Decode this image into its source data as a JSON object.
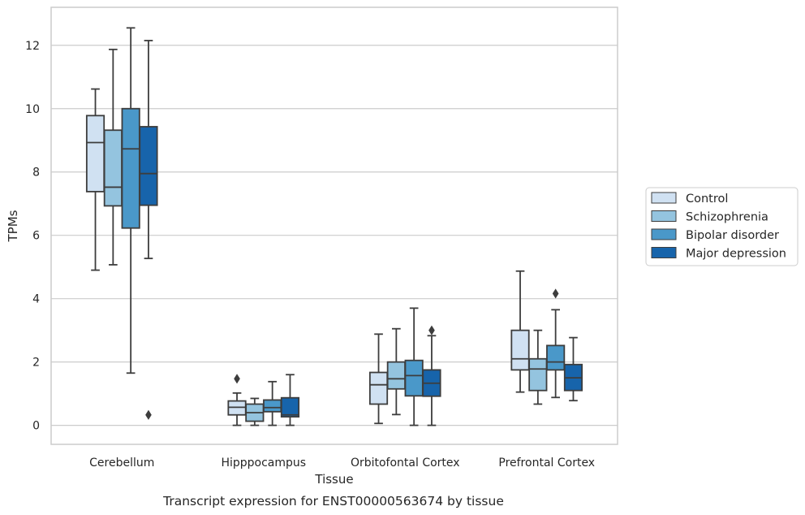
{
  "chart_data": {
    "type": "boxplot",
    "title": "",
    "caption": "Transcript expression for ENST00000563674 by tissue",
    "xlabel": "Tissue",
    "ylabel": "TPMs",
    "ylim": [
      -0.6,
      13.2
    ],
    "yticks": [
      0,
      2,
      4,
      6,
      8,
      10,
      12
    ],
    "grid": "horizontal",
    "legend_position": "right",
    "categories": [
      "Cerebellum",
      "Hipppocampus",
      "Orbitofontal Cortex",
      "Prefrontal Cortex"
    ],
    "series": [
      {
        "name": "Control",
        "color": "#d0e1f2",
        "boxes": [
          {
            "whislo": 4.9,
            "q1": 7.38,
            "med": 8.93,
            "q3": 9.78,
            "whishi": 10.62,
            "fliers": []
          },
          {
            "whislo": 0.0,
            "q1": 0.33,
            "med": 0.57,
            "q3": 0.77,
            "whishi": 1.02,
            "fliers": [
              1.47
            ]
          },
          {
            "whislo": 0.06,
            "q1": 0.67,
            "med": 1.28,
            "q3": 1.67,
            "whishi": 2.88,
            "fliers": []
          },
          {
            "whislo": 1.05,
            "q1": 1.75,
            "med": 2.1,
            "q3": 3.0,
            "whishi": 4.87,
            "fliers": []
          }
        ]
      },
      {
        "name": "Schizophrenia",
        "color": "#94c4df",
        "boxes": [
          {
            "whislo": 5.07,
            "q1": 6.93,
            "med": 7.52,
            "q3": 9.32,
            "whishi": 11.87,
            "fliers": []
          },
          {
            "whislo": 0.0,
            "q1": 0.13,
            "med": 0.4,
            "q3": 0.67,
            "whishi": 0.85,
            "fliers": []
          },
          {
            "whislo": 0.34,
            "q1": 1.15,
            "med": 1.47,
            "q3": 2.0,
            "whishi": 3.05,
            "fliers": []
          },
          {
            "whislo": 0.67,
            "q1": 1.1,
            "med": 1.78,
            "q3": 2.1,
            "whishi": 3.0,
            "fliers": []
          }
        ]
      },
      {
        "name": "Bipolar disorder",
        "color": "#4a98c9",
        "boxes": [
          {
            "whislo": 1.65,
            "q1": 6.23,
            "med": 8.73,
            "q3": 10.0,
            "whishi": 12.55,
            "fliers": []
          },
          {
            "whislo": 0.0,
            "q1": 0.43,
            "med": 0.56,
            "q3": 0.8,
            "whishi": 1.38,
            "fliers": []
          },
          {
            "whislo": 0.0,
            "q1": 0.93,
            "med": 1.57,
            "q3": 2.05,
            "whishi": 3.7,
            "fliers": []
          },
          {
            "whislo": 0.88,
            "q1": 1.75,
            "med": 2.0,
            "q3": 2.52,
            "whishi": 3.65,
            "fliers": [
              4.16
            ]
          }
        ]
      },
      {
        "name": "Major depression",
        "color": "#1764ab",
        "boxes": [
          {
            "whislo": 5.27,
            "q1": 6.95,
            "med": 7.95,
            "q3": 9.43,
            "whishi": 12.15,
            "fliers": [
              0.33
            ]
          },
          {
            "whislo": 0.0,
            "q1": 0.27,
            "med": 0.33,
            "q3": 0.87,
            "whishi": 1.6,
            "fliers": []
          },
          {
            "whislo": 0.0,
            "q1": 0.92,
            "med": 1.33,
            "q3": 1.75,
            "whishi": 2.83,
            "fliers": [
              3.0
            ]
          },
          {
            "whislo": 0.78,
            "q1": 1.1,
            "med": 1.5,
            "q3": 1.92,
            "whishi": 2.77,
            "fliers": []
          }
        ]
      }
    ]
  }
}
